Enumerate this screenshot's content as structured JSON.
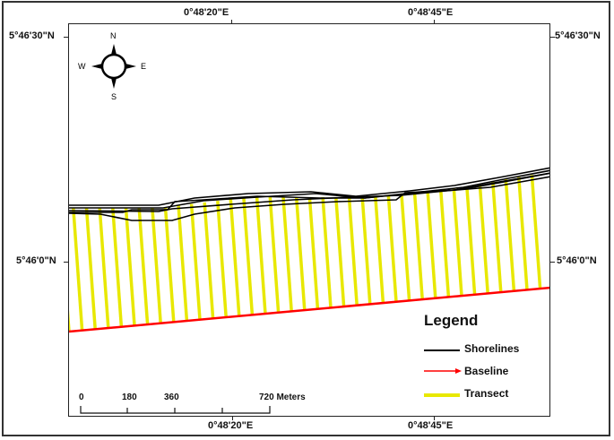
{
  "map": {
    "graticule": {
      "top_labels": [
        "0°48'20\"E",
        "0°48'45\"E"
      ],
      "bottom_labels": [
        "0°48'20\"E",
        "0°48'45\"E"
      ],
      "left_labels": [
        "5°46'30\"N",
        "5°46'0\"N"
      ],
      "right_labels": [
        "5°46'30\"N",
        "5°46'0\"N"
      ]
    },
    "north_arrow": {
      "n": "N",
      "s": "S",
      "e": "E",
      "w": "W"
    },
    "legend": {
      "title": "Legend",
      "items": [
        {
          "label": "Shorelines",
          "color": "#000000",
          "symbol": "line"
        },
        {
          "label": "Baseline",
          "color": "#ff0000",
          "symbol": "arrow"
        },
        {
          "label": "Transect",
          "color": "#e8e800",
          "symbol": "thick-line"
        }
      ]
    },
    "scale_bar": {
      "ticks": [
        "0",
        "180",
        "360",
        "720 Meters"
      ]
    },
    "colors": {
      "transect": "#e8e800",
      "baseline": "#ff0000",
      "shoreline": "#000000"
    }
  }
}
